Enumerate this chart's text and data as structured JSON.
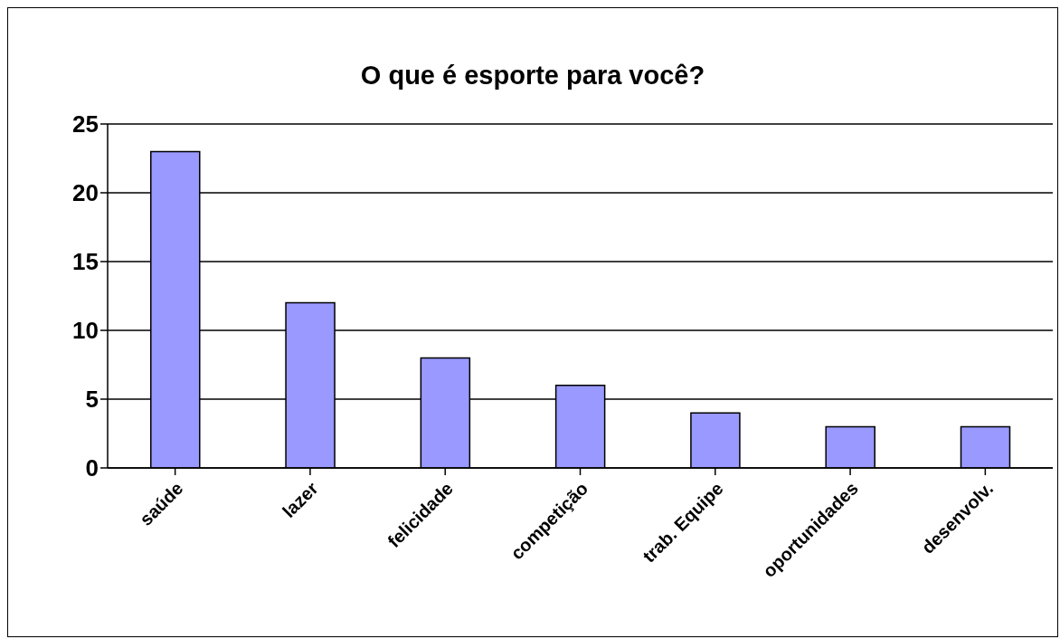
{
  "chart_data": {
    "type": "bar",
    "title": "O que é esporte para você?",
    "categories": [
      "saúde",
      "lazer",
      "felicidade",
      "competição",
      "trab. Equipe",
      "oportunidades",
      "desenvolv."
    ],
    "values": [
      23,
      12,
      8,
      6,
      4,
      3,
      3
    ],
    "color": "#9999ff",
    "ylim": [
      0,
      25
    ],
    "yticks": [
      0,
      5,
      10,
      15,
      20,
      25
    ],
    "grid": "y"
  }
}
